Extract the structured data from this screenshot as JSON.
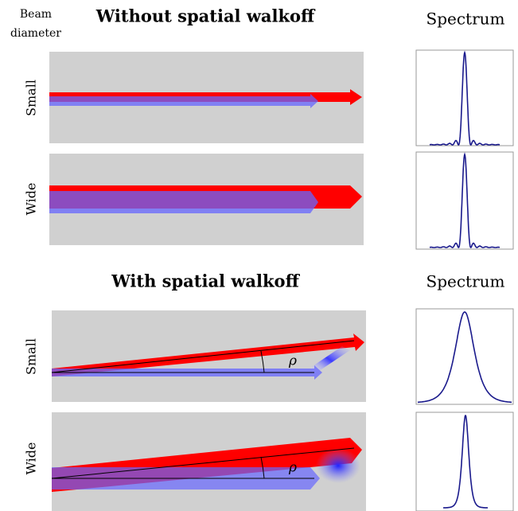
{
  "header": {
    "beam_label": [
      "Beam",
      "diameter"
    ]
  },
  "sections": [
    {
      "title": "Without spatial walkoff",
      "spectrum_label": "Spectrum",
      "rows": [
        {
          "label": "Small"
        },
        {
          "label": "Wide"
        }
      ]
    },
    {
      "title": "With spatial walkoff",
      "spectrum_label": "Spectrum",
      "rows": [
        {
          "label": "Small",
          "angle": "ρ"
        },
        {
          "label": "Wide",
          "angle": "ρ"
        }
      ]
    }
  ]
}
